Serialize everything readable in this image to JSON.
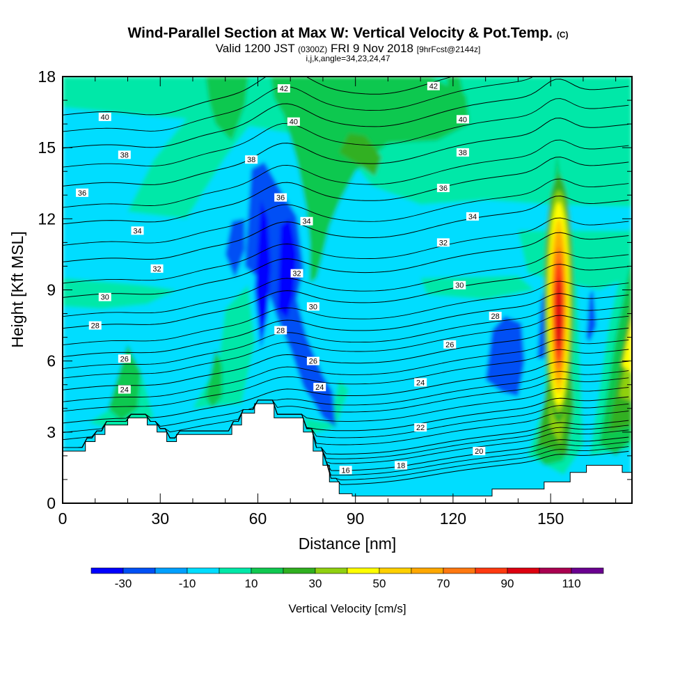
{
  "header": {
    "title": "Wind-Parallel Section at Max W: Vertical Velocity & Pot.Temp.",
    "title_mark": "(C)",
    "valid_prefix": "Valid 1200 JST",
    "valid_utc": "(0300Z)",
    "valid_date": "FRI 9 Nov 2018",
    "forecast": "[9hrFcst@2144z]",
    "params": "i,j,k,angle=34,23,24,47"
  },
  "chart_data": {
    "type": "heatmap",
    "xlabel": "Distance [nm]",
    "ylabel": "Height [Kft MSL]",
    "xlim": [
      0,
      175
    ],
    "ylim": [
      0,
      18
    ],
    "xticks": [
      "0",
      "30",
      "60",
      "90",
      "120",
      "150"
    ],
    "yticks": [
      "0",
      "3",
      "6",
      "9",
      "12",
      "15",
      "18"
    ],
    "fill_variable": "Vertical Velocity [cm/s]",
    "colorbar": {
      "label": "Vertical Velocity [cm/s]",
      "bounds": [
        -40,
        -30,
        -20,
        -10,
        0,
        10,
        20,
        30,
        40,
        50,
        60,
        70,
        80,
        90,
        100,
        110,
        120
      ],
      "tick_labels": [
        "-30",
        "-10",
        "10",
        "30",
        "50",
        "70",
        "90",
        "110"
      ],
      "colors": [
        "#0000ff",
        "#0050f5",
        "#00a0ff",
        "#00ddff",
        "#00e8a8",
        "#10c850",
        "#30b020",
        "#90d010",
        "#ffff00",
        "#ffd000",
        "#ffa800",
        "#ff7810",
        "#ff3a10",
        "#dd0010",
        "#aa0050",
        "#6a0090"
      ]
    },
    "base_fill": "-10 to 0",
    "features": [
      {
        "kind": "downdraft",
        "range": "-40 to -30",
        "x_center": 62,
        "y_center": 10.5
      },
      {
        "kind": "downdraft",
        "range": "-40 to -30",
        "x_center": 70,
        "y_center": 10.5
      },
      {
        "kind": "downdraft",
        "range": "-30 to -20",
        "x_center": 67,
        "y_center": 8.5
      },
      {
        "kind": "downdraft",
        "range": "-30 to -20",
        "x_center": 139,
        "y_center": 6.2
      },
      {
        "kind": "updraft",
        "range": "90 to 100",
        "x_center": 152.5,
        "y_center": 8
      }
    ],
    "terrain": [
      [
        0,
        2.2
      ],
      [
        7,
        2.2
      ],
      [
        7,
        2.6
      ],
      [
        10,
        2.6
      ],
      [
        10,
        2.9
      ],
      [
        13,
        2.9
      ],
      [
        13,
        3.3
      ],
      [
        20,
        3.3
      ],
      [
        20,
        3.6
      ],
      [
        26,
        3.6
      ],
      [
        26,
        3.3
      ],
      [
        29,
        3.3
      ],
      [
        29,
        3.0
      ],
      [
        32,
        3.0
      ],
      [
        32,
        2.6
      ],
      [
        35,
        2.6
      ],
      [
        35,
        2.9
      ],
      [
        52,
        2.9
      ],
      [
        52,
        3.3
      ],
      [
        55,
        3.3
      ],
      [
        55,
        3.8
      ],
      [
        59,
        3.8
      ],
      [
        59,
        4.2
      ],
      [
        65,
        4.2
      ],
      [
        65,
        3.6
      ],
      [
        74,
        3.6
      ],
      [
        74,
        3.0
      ],
      [
        77,
        3.0
      ],
      [
        77,
        2.2
      ],
      [
        80,
        2.2
      ],
      [
        80,
        1.6
      ],
      [
        82,
        1.6
      ],
      [
        82,
        0.9
      ],
      [
        85,
        0.9
      ],
      [
        85,
        0.4
      ],
      [
        89,
        0.4
      ],
      [
        89,
        0.3
      ],
      [
        132,
        0.3
      ],
      [
        132,
        0.6
      ],
      [
        148,
        0.6
      ],
      [
        148,
        0.9
      ],
      [
        156,
        0.9
      ],
      [
        156,
        1.3
      ],
      [
        161,
        1.3
      ],
      [
        161,
        1.6
      ],
      [
        172,
        1.6
      ],
      [
        172,
        1.3
      ],
      [
        175,
        1.3
      ]
    ],
    "isentropes": [
      {
        "theta": 16,
        "y": 0.9
      },
      {
        "theta": 18,
        "y": 1.5
      },
      {
        "theta": 20,
        "y": 2.2
      },
      {
        "theta": 22,
        "y": 3.2
      },
      {
        "theta": 24,
        "y": 4.7
      },
      {
        "theta": 26,
        "y": 6.1
      },
      {
        "theta": 28,
        "y": 7.5
      },
      {
        "theta": 30,
        "y": 8.7
      },
      {
        "theta": 32,
        "y": 10.0
      },
      {
        "theta": 34,
        "y": 11.5
      },
      {
        "theta": 36,
        "y": 13.1
      },
      {
        "theta": 38,
        "y": 14.7
      },
      {
        "theta": 40,
        "y": 16.3
      },
      {
        "theta": 42,
        "y": 17.7
      }
    ],
    "contour_labels": [
      {
        "text": "40",
        "x": 13,
        "y": 16.3
      },
      {
        "text": "42",
        "x": 68,
        "y": 17.5
      },
      {
        "text": "42",
        "x": 114,
        "y": 17.6
      },
      {
        "text": "40",
        "x": 71,
        "y": 16.1
      },
      {
        "text": "40",
        "x": 123,
        "y": 16.2
      },
      {
        "text": "38",
        "x": 19,
        "y": 14.7
      },
      {
        "text": "38",
        "x": 58,
        "y": 14.5
      },
      {
        "text": "38",
        "x": 123,
        "y": 14.8
      },
      {
        "text": "36",
        "x": 6,
        "y": 13.1
      },
      {
        "text": "36",
        "x": 67,
        "y": 12.9
      },
      {
        "text": "36",
        "x": 117,
        "y": 13.3
      },
      {
        "text": "34",
        "x": 23,
        "y": 11.5
      },
      {
        "text": "34",
        "x": 75,
        "y": 11.9
      },
      {
        "text": "34",
        "x": 126,
        "y": 12.1
      },
      {
        "text": "32",
        "x": 29,
        "y": 9.9
      },
      {
        "text": "32",
        "x": 72,
        "y": 9.7
      },
      {
        "text": "32",
        "x": 117,
        "y": 11.0
      },
      {
        "text": "30",
        "x": 13,
        "y": 8.7
      },
      {
        "text": "30",
        "x": 77,
        "y": 8.3
      },
      {
        "text": "30",
        "x": 122,
        "y": 9.2
      },
      {
        "text": "28",
        "x": 10,
        "y": 7.5
      },
      {
        "text": "28",
        "x": 67,
        "y": 7.3
      },
      {
        "text": "28",
        "x": 133,
        "y": 7.9
      },
      {
        "text": "26",
        "x": 19,
        "y": 6.1
      },
      {
        "text": "26",
        "x": 77,
        "y": 6.0
      },
      {
        "text": "26",
        "x": 119,
        "y": 6.7
      },
      {
        "text": "24",
        "x": 19,
        "y": 4.8
      },
      {
        "text": "24",
        "x": 79,
        "y": 4.9
      },
      {
        "text": "24",
        "x": 110,
        "y": 5.1
      },
      {
        "text": "22",
        "x": 110,
        "y": 3.2
      },
      {
        "text": "20",
        "x": 128,
        "y": 2.2
      },
      {
        "text": "18",
        "x": 104,
        "y": 1.6
      },
      {
        "text": "16",
        "x": 87,
        "y": 1.4
      }
    ]
  }
}
